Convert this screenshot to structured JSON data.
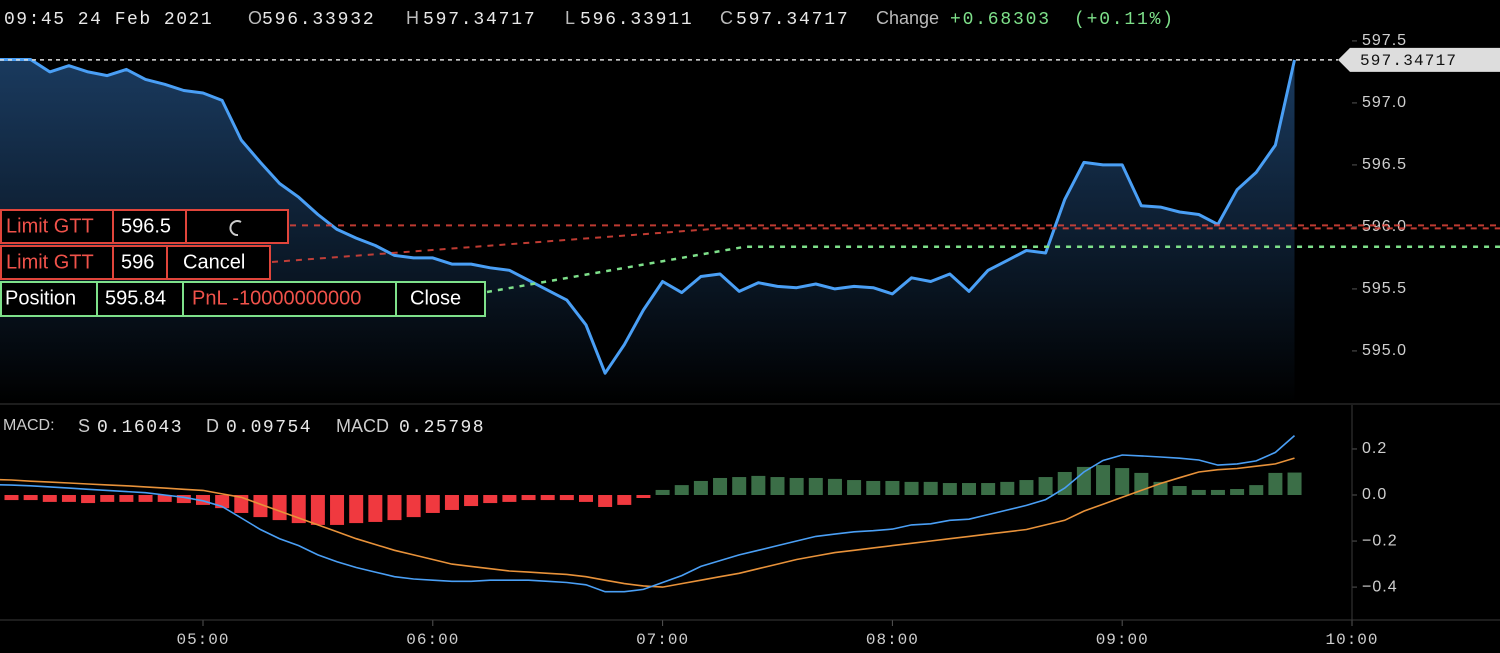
{
  "header": {
    "time": "09:45 24 Feb 2021",
    "open_label": "O",
    "open": "596.33932",
    "high_label": "H",
    "high": "597.34717",
    "low_label": "L",
    "low": "596.33911",
    "close_label": "C",
    "change_label": "Change",
    "change": "+0.68303",
    "change_pct": "(+0.11%)"
  },
  "orders": [
    {
      "type": "Limit GTT",
      "price": 596.5
    },
    {
      "type": "Limit GTT",
      "price": 596,
      "action": "Cancel"
    }
  ],
  "position": {
    "label": "Position",
    "price": 595.84,
    "pnl": "PnL -10000000000",
    "action": "Close"
  },
  "chart_data": [
    {
      "type": "area",
      "color": "#4a9ff5",
      "x": [
        "04:05",
        "04:10",
        "04:15",
        "04:20",
        "04:25",
        "04:30",
        "04:35",
        "04:40",
        "04:45",
        "04:50",
        "04:55",
        "05:00",
        "05:05",
        "05:10",
        "05:15",
        "05:20",
        "05:25",
        "05:30",
        "05:35",
        "05:40",
        "05:45",
        "05:50",
        "05:55",
        "06:00",
        "06:05",
        "06:10",
        "06:15",
        "06:20",
        "06:25",
        "06:30",
        "06:35",
        "06:40",
        "06:45",
        "06:50",
        "06:55",
        "07:00",
        "07:05",
        "07:10",
        "07:15",
        "07:20",
        "07:25",
        "07:30",
        "07:35",
        "07:40",
        "07:45",
        "07:50",
        "07:55",
        "08:00",
        "08:05",
        "08:10",
        "08:15",
        "08:20",
        "08:25",
        "08:30",
        "08:35",
        "08:40",
        "08:45",
        "08:50",
        "08:55",
        "09:00",
        "09:05",
        "09:10",
        "09:15",
        "09:20",
        "09:25",
        "09:30",
        "09:35",
        "09:40",
        "09:45"
      ],
      "values": [
        597.35,
        597.35,
        597.35,
        597.25,
        597.3,
        597.25,
        597.22,
        597.27,
        597.19,
        597.15,
        597.1,
        597.08,
        597.02,
        596.7,
        596.52,
        596.35,
        596.24,
        596.1,
        595.98,
        595.91,
        595.85,
        595.77,
        595.75,
        595.75,
        595.7,
        595.7,
        595.67,
        595.65,
        595.57,
        595.49,
        595.41,
        595.21,
        594.82,
        595.05,
        595.33,
        595.56,
        595.47,
        595.6,
        595.62,
        595.48,
        595.55,
        595.52,
        595.51,
        595.54,
        595.5,
        595.52,
        595.51,
        595.46,
        595.59,
        595.56,
        595.62,
        595.48,
        595.65,
        595.73,
        595.81,
        595.79,
        596.22,
        596.52,
        596.5,
        596.5,
        596.17,
        596.16,
        596.12,
        596.1,
        596.02,
        596.3,
        596.44,
        596.66,
        597.34717
      ],
      "xlim": [
        "04:07",
        "10:00"
      ],
      "ylim": [
        594.58,
        597.83
      ],
      "yticks": [
        597.5,
        {
          "value": 597.0,
          "label": "597.0"
        },
        596.5,
        {
          "value": 596.0,
          "label": "596.0"
        },
        595.5,
        {
          "value": 595.0,
          "label": "595.0"
        }
      ]
    },
    {
      "type": "line",
      "title": "MACD:",
      "x": [
        "04:05",
        "04:10",
        "04:15",
        "04:20",
        "04:25",
        "04:30",
        "04:35",
        "04:40",
        "04:45",
        "04:50",
        "04:55",
        "05:00",
        "05:05",
        "05:10",
        "05:15",
        "05:20",
        "05:25",
        "05:30",
        "05:35",
        "05:40",
        "05:45",
        "05:50",
        "05:55",
        "06:00",
        "06:05",
        "06:10",
        "06:15",
        "06:20",
        "06:25",
        "06:30",
        "06:35",
        "06:40",
        "06:45",
        "06:50",
        "06:55",
        "07:00",
        "07:05",
        "07:10",
        "07:15",
        "07:20",
        "07:25",
        "07:30",
        "07:35",
        "07:40",
        "07:45",
        "07:50",
        "07:55",
        "08:00",
        "08:05",
        "08:10",
        "08:15",
        "08:20",
        "08:25",
        "08:30",
        "08:35",
        "08:40",
        "08:45",
        "08:50",
        "08:55",
        "09:00",
        "09:05",
        "09:10",
        "09:15",
        "09:20",
        "09:25",
        "09:30",
        "09:35",
        "09:40",
        "09:45"
      ],
      "series": [
        {
          "name": "S",
          "type": "line",
          "color": "#e8923a",
          "values": [
            0.068,
            0.065,
            0.06,
            0.056,
            0.052,
            0.048,
            0.044,
            0.04,
            0.035,
            0.03,
            0.025,
            0.02,
            0.005,
            -0.01,
            -0.04,
            -0.07,
            -0.1,
            -0.13,
            -0.16,
            -0.19,
            -0.215,
            -0.24,
            -0.26,
            -0.28,
            -0.3,
            -0.31,
            -0.32,
            -0.33,
            -0.335,
            -0.34,
            -0.345,
            -0.355,
            -0.37,
            -0.385,
            -0.395,
            -0.4,
            -0.385,
            -0.37,
            -0.355,
            -0.34,
            -0.32,
            -0.3,
            -0.28,
            -0.265,
            -0.25,
            -0.24,
            -0.23,
            -0.22,
            -0.21,
            -0.2,
            -0.19,
            -0.18,
            -0.17,
            -0.16,
            -0.15,
            -0.13,
            -0.11,
            -0.07,
            -0.04,
            -0.01,
            0.02,
            0.05,
            0.075,
            0.1,
            0.11,
            0.115,
            0.125,
            0.135,
            0.16043
          ]
        },
        {
          "name": "D",
          "type": "bar",
          "color": "#3b6e47",
          "negative_color": "#f0393f",
          "values": [
            -0.022,
            -0.022,
            -0.022,
            -0.03,
            -0.03,
            -0.035,
            -0.03,
            -0.03,
            -0.03,
            -0.03,
            -0.035,
            -0.043,
            -0.057,
            -0.078,
            -0.096,
            -0.109,
            -0.122,
            -0.13,
            -0.13,
            -0.122,
            -0.117,
            -0.109,
            -0.096,
            -0.078,
            -0.065,
            -0.048,
            -0.035,
            -0.03,
            -0.022,
            -0.022,
            -0.022,
            -0.03,
            -0.052,
            -0.043,
            -0.013,
            0.022,
            0.043,
            0.061,
            0.074,
            0.078,
            0.083,
            0.078,
            0.074,
            0.074,
            0.07,
            0.065,
            0.061,
            0.061,
            0.057,
            0.057,
            0.052,
            0.052,
            0.052,
            0.057,
            0.065,
            0.078,
            0.1,
            0.122,
            0.13,
            0.117,
            0.096,
            0.057,
            0.039,
            0.022,
            0.022,
            0.026,
            0.043,
            0.096,
            0.09754
          ]
        },
        {
          "name": "MACD",
          "type": "line",
          "color": "#4a9ff5",
          "values": [
            0.045,
            0.043,
            0.04,
            0.035,
            0.03,
            0.025,
            0.02,
            0.015,
            0.01,
            0.0,
            -0.01,
            -0.025,
            -0.05,
            -0.1,
            -0.15,
            -0.19,
            -0.22,
            -0.26,
            -0.29,
            -0.315,
            -0.335,
            -0.355,
            -0.365,
            -0.37,
            -0.375,
            -0.375,
            -0.37,
            -0.37,
            -0.37,
            -0.375,
            -0.38,
            -0.39,
            -0.42,
            -0.42,
            -0.41,
            -0.38,
            -0.35,
            -0.31,
            -0.285,
            -0.26,
            -0.24,
            -0.22,
            -0.2,
            -0.18,
            -0.17,
            -0.16,
            -0.155,
            -0.148,
            -0.13,
            -0.125,
            -0.11,
            -0.105,
            -0.085,
            -0.065,
            -0.045,
            -0.02,
            0.03,
            0.1,
            0.15,
            0.174,
            0.17,
            0.165,
            0.16,
            0.152,
            0.13,
            0.135,
            0.148,
            0.185,
            0.25798
          ]
        }
      ],
      "xlim": [
        "04:07",
        "10:00"
      ],
      "ylim": [
        -0.543,
        0.391
      ],
      "yticks": [
        0.2,
        {
          "value": 0.0,
          "label": "0.0"
        },
        {
          "value": -0.2,
          "label": "−0.2"
        },
        {
          "value": -0.4,
          "label": "−0.4"
        }
      ],
      "xticks": [
        "05:00",
        "06:00",
        "07:00",
        "08:00",
        "09:00",
        "10:00"
      ]
    }
  ]
}
